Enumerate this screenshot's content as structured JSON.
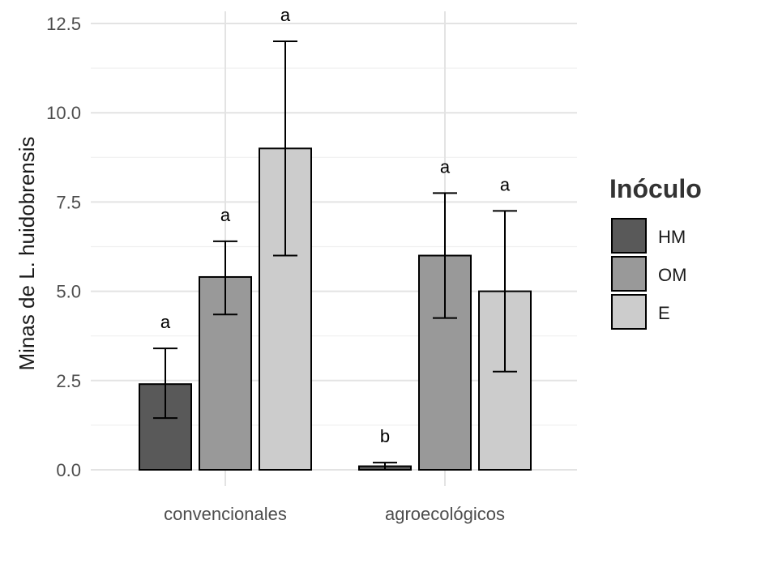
{
  "chart_data": {
    "type": "bar",
    "title": "",
    "xlabel": "",
    "ylabel": "Minas de L. huidobrensis",
    "ylim": [
      0,
      12.5
    ],
    "yticks": [
      "0.0",
      "2.5",
      "5.0",
      "7.5",
      "10.0",
      "12.5"
    ],
    "ytick_values": [
      0,
      2.5,
      5,
      7.5,
      10,
      12.5
    ],
    "categories": [
      "convencionales",
      "agroecológicos"
    ],
    "series": [
      {
        "name": "HM",
        "color": "#595959",
        "values": [
          2.4,
          0.1
        ],
        "error_low": [
          1.45,
          0.0
        ],
        "error_high": [
          3.4,
          0.2
        ],
        "labels": [
          "a",
          "b"
        ]
      },
      {
        "name": "OM",
        "color": "#999999",
        "values": [
          5.4,
          6.0
        ],
        "error_low": [
          4.35,
          4.25
        ],
        "error_high": [
          6.4,
          7.75
        ],
        "labels": [
          "a",
          "a"
        ]
      },
      {
        "name": "E",
        "color": "#cccccc",
        "values": [
          9.0,
          5.0
        ],
        "error_low": [
          6.0,
          2.75
        ],
        "error_high": [
          12.0,
          7.25
        ],
        "labels": [
          "a",
          "a"
        ]
      }
    ],
    "grid": true,
    "legend": {
      "title": "Inóculo",
      "position": "right"
    }
  }
}
